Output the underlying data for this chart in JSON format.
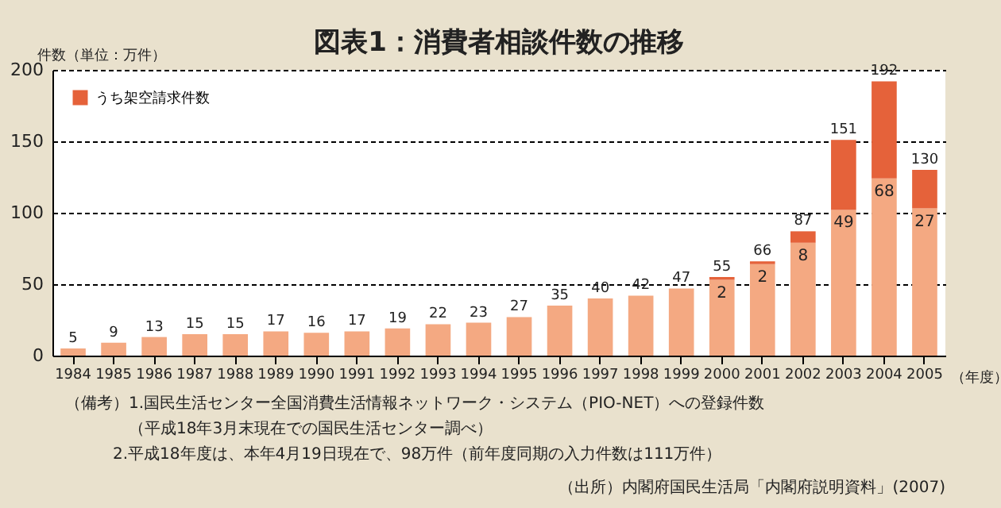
{
  "chart_data": {
    "type": "bar",
    "stacked": true,
    "title": "図表1：消費者相談件数の推移",
    "ylabel": "件数（単位：万件）",
    "xlabel": "（年度）",
    "categories": [
      "1984",
      "1985",
      "1986",
      "1987",
      "1988",
      "1989",
      "1990",
      "1991",
      "1992",
      "1993",
      "1994",
      "1995",
      "1996",
      "1997",
      "1998",
      "1999",
      "2000",
      "2001",
      "2002",
      "2003",
      "2004",
      "2005"
    ],
    "series": [
      {
        "color": "#f4a982",
        "values": [
          5,
          9,
          13,
          15,
          15,
          17,
          16,
          17,
          19,
          22,
          23,
          27,
          35,
          40,
          42,
          47,
          53,
          64,
          79,
          102,
          124,
          103
        ]
      },
      {
        "name": "うち架空請求件数",
        "color": "#e5623a",
        "values": [
          null,
          null,
          null,
          null,
          null,
          null,
          null,
          null,
          null,
          null,
          null,
          null,
          null,
          null,
          null,
          null,
          2,
          2,
          8,
          49,
          68,
          27
        ],
        "value_labels": [
          null,
          null,
          null,
          null,
          null,
          null,
          null,
          null,
          null,
          null,
          null,
          null,
          null,
          null,
          null,
          null,
          "2",
          "2",
          "8",
          "49",
          "68",
          "27"
        ]
      }
    ],
    "totals": [
      "5",
      "9",
      "13",
      "15",
      "15",
      "17",
      "16",
      "17",
      "19",
      "22",
      "23",
      "27",
      "35",
      "40",
      "42",
      "47",
      "55",
      "66",
      "87",
      "151",
      "192",
      "130"
    ],
    "ylim": [
      0,
      200
    ],
    "yticks": [
      0,
      50,
      100,
      150,
      200
    ],
    "grid": "y",
    "legend": "top left",
    "annotations": [
      "（備考）1.国民生活センター全国消費生活情報ネットワーク・システム（PIO-NET）への登録件数",
      "（平成18年3月末現在での国民生活センター調べ）",
      "2.平成18年度は、本年4月19日現在で、98万件（前年度同期の入力件数は111万件）",
      "（出所）内閣府国民生活局「内閣府説明資料」(2007)"
    ]
  }
}
